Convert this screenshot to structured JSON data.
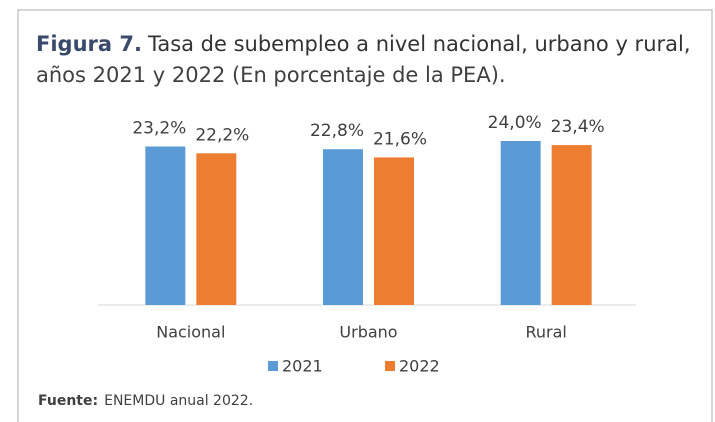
{
  "chart_data": {
    "type": "bar",
    "title_prefix": "Figura 7.",
    "title": [
      "Tasa de subempleo a nivel nacional, urbano y rural,",
      "años 2021 y 2022 (En porcentaje de la PEA)."
    ],
    "categories": [
      "Nacional",
      "Urbano",
      "Rural"
    ],
    "series": [
      {
        "name": "2021",
        "color": "#5b9bd5",
        "values": [
          23.2,
          22.8,
          24.0
        ],
        "value_labels": [
          "23,2%",
          "22,8%",
          "24,0%"
        ]
      },
      {
        "name": "2022",
        "color": "#ed7d31",
        "values": [
          22.2,
          21.6,
          23.4
        ],
        "value_labels": [
          "22,2%",
          "21,6%",
          "23,4%"
        ]
      }
    ],
    "legend": "bottom",
    "source_prefix": "Fuente:",
    "source": "ENEMDU anual 2022."
  }
}
